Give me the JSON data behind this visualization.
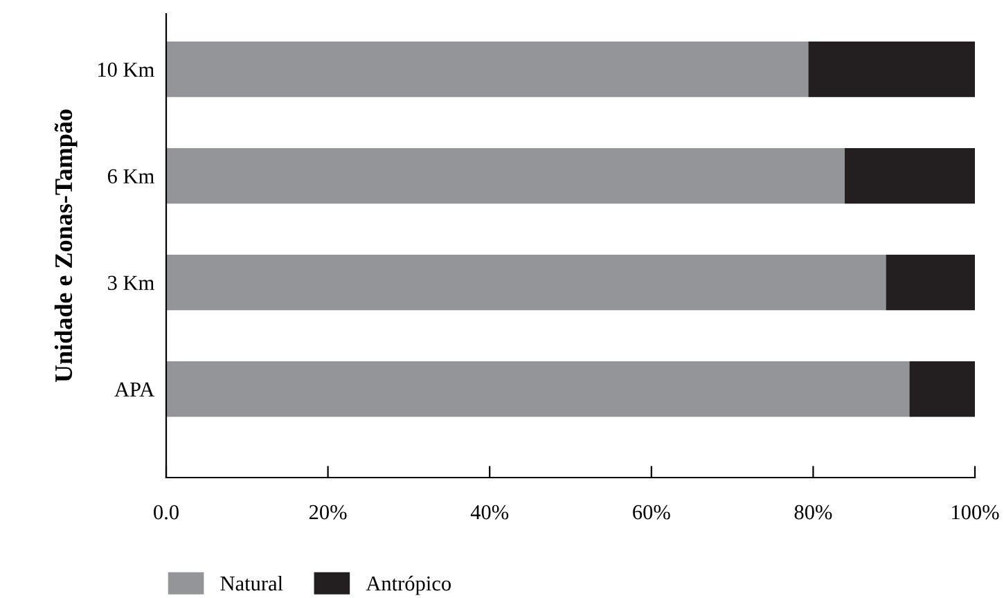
{
  "chart_data": {
    "type": "bar",
    "orientation": "horizontal",
    "stacked": true,
    "ylabel": "Unidade e Zonas-Tampão",
    "categories": [
      "10 Km",
      "6 Km",
      "3 Km",
      "APA"
    ],
    "series": [
      {
        "name": "Natural",
        "color": "#939598",
        "values": [
          79.4,
          83.9,
          89.0,
          91.9
        ]
      },
      {
        "name": "Antrópico",
        "color": "#231f20",
        "values": [
          20.6,
          16.1,
          11.0,
          8.1
        ]
      }
    ],
    "xlim": [
      0,
      100
    ],
    "xticks": [
      {
        "value": 0,
        "label": "0.0"
      },
      {
        "value": 20,
        "label": "20%"
      },
      {
        "value": 40,
        "label": "40%"
      },
      {
        "value": 60,
        "label": "60%"
      },
      {
        "value": 80,
        "label": "80%"
      },
      {
        "value": 100,
        "label": "100%"
      }
    ],
    "grid": false,
    "legend": "bottom left"
  }
}
